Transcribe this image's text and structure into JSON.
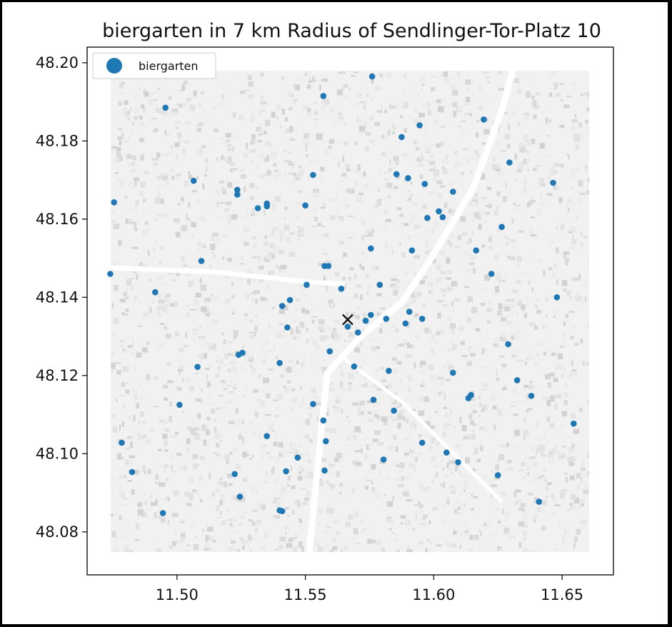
{
  "chart_data": {
    "type": "scatter",
    "title": "biergarten in 7 km Radius of Sendlinger-Tor-Platz 10",
    "xlabel": "",
    "ylabel": "",
    "xlim": [
      11.465,
      11.67
    ],
    "ylim": [
      48.069,
      48.204
    ],
    "xticks": [
      11.5,
      11.55,
      11.6,
      11.65
    ],
    "xtick_labels": [
      "11.50",
      "11.55",
      "11.60",
      "11.65"
    ],
    "yticks": [
      48.08,
      48.1,
      48.12,
      48.14,
      48.16,
      48.18,
      48.2
    ],
    "ytick_labels": [
      "48.08",
      "48.10",
      "48.12",
      "48.14",
      "48.16",
      "48.18",
      "48.20"
    ],
    "legend": {
      "location": "top-left",
      "entries": [
        "biergarten"
      ]
    },
    "grid": false,
    "background": "grey building footprints map of Munich",
    "colors": {
      "points": "#1f77b4",
      "marker": "#111111",
      "map": "#e5e5e5"
    },
    "series": [
      {
        "name": "biergarten",
        "points": [
          [
            11.576,
            48.1965
          ],
          [
            11.557,
            48.1915
          ],
          [
            11.4955,
            48.1885
          ],
          [
            11.6195,
            48.1855
          ],
          [
            11.5875,
            48.181
          ],
          [
            11.5945,
            48.184
          ],
          [
            11.6295,
            48.1745
          ],
          [
            11.553,
            48.1713
          ],
          [
            11.5855,
            48.1715
          ],
          [
            11.59,
            48.1705
          ],
          [
            11.5965,
            48.169
          ],
          [
            11.5065,
            48.1698
          ],
          [
            11.6465,
            48.1693
          ],
          [
            11.5235,
            48.1675
          ],
          [
            11.5235,
            48.1663
          ],
          [
            11.6075,
            48.167
          ],
          [
            11.4755,
            48.1643
          ],
          [
            11.535,
            48.164
          ],
          [
            11.535,
            48.1633
          ],
          [
            11.55,
            48.1635
          ],
          [
            11.5315,
            48.1628
          ],
          [
            11.602,
            48.162
          ],
          [
            11.6035,
            48.1605
          ],
          [
            11.5975,
            48.1603
          ],
          [
            11.6265,
            48.158
          ],
          [
            11.5755,
            48.1525
          ],
          [
            11.5915,
            48.152
          ],
          [
            11.6165,
            48.152
          ],
          [
            11.5095,
            48.1493
          ],
          [
            11.5575,
            48.148
          ],
          [
            11.559,
            48.148
          ],
          [
            11.474,
            48.146
          ],
          [
            11.6225,
            48.146
          ],
          [
            11.5505,
            48.1432
          ],
          [
            11.579,
            48.1432
          ],
          [
            11.564,
            48.1422
          ],
          [
            11.4915,
            48.1413
          ],
          [
            11.648,
            48.14
          ],
          [
            11.544,
            48.1393
          ],
          [
            11.541,
            48.1378
          ],
          [
            11.5905,
            48.1363
          ],
          [
            11.5755,
            48.1355
          ],
          [
            11.5735,
            48.134
          ],
          [
            11.5815,
            48.1345
          ],
          [
            11.5955,
            48.1345
          ],
          [
            11.589,
            48.1333
          ],
          [
            11.5665,
            48.1325
          ],
          [
            11.543,
            48.1323
          ],
          [
            11.5705,
            48.131
          ],
          [
            11.629,
            48.128
          ],
          [
            11.5595,
            48.1262
          ],
          [
            11.5255,
            48.1258
          ],
          [
            11.524,
            48.1253
          ],
          [
            11.54,
            48.1232
          ],
          [
            11.569,
            48.1223
          ],
          [
            11.508,
            48.1222
          ],
          [
            11.5825,
            48.1212
          ],
          [
            11.6075,
            48.1207
          ],
          [
            11.6325,
            48.1188
          ],
          [
            11.6145,
            48.115
          ],
          [
            11.6135,
            48.1142
          ],
          [
            11.638,
            48.1148
          ],
          [
            11.5765,
            48.1138
          ],
          [
            11.553,
            48.1127
          ],
          [
            11.501,
            48.1125
          ],
          [
            11.5845,
            48.111
          ],
          [
            11.557,
            48.1085
          ],
          [
            11.6545,
            48.1077
          ],
          [
            11.535,
            48.1045
          ],
          [
            11.558,
            48.1032
          ],
          [
            11.4785,
            48.1028
          ],
          [
            11.5955,
            48.1028
          ],
          [
            11.605,
            48.1003
          ],
          [
            11.5805,
            48.0985
          ],
          [
            11.6095,
            48.0978
          ],
          [
            11.547,
            48.099
          ],
          [
            11.5425,
            48.0955
          ],
          [
            11.5575,
            48.0957
          ],
          [
            11.4825,
            48.0953
          ],
          [
            11.5225,
            48.0948
          ],
          [
            11.625,
            48.0945
          ],
          [
            11.5245,
            48.089
          ],
          [
            11.641,
            48.0877
          ],
          [
            11.54,
            48.0855
          ],
          [
            11.541,
            48.0853
          ],
          [
            11.4945,
            48.0848
          ]
        ]
      }
    ],
    "center_marker": {
      "symbol": "x",
      "x": 11.5665,
      "y": 48.1343
    }
  }
}
